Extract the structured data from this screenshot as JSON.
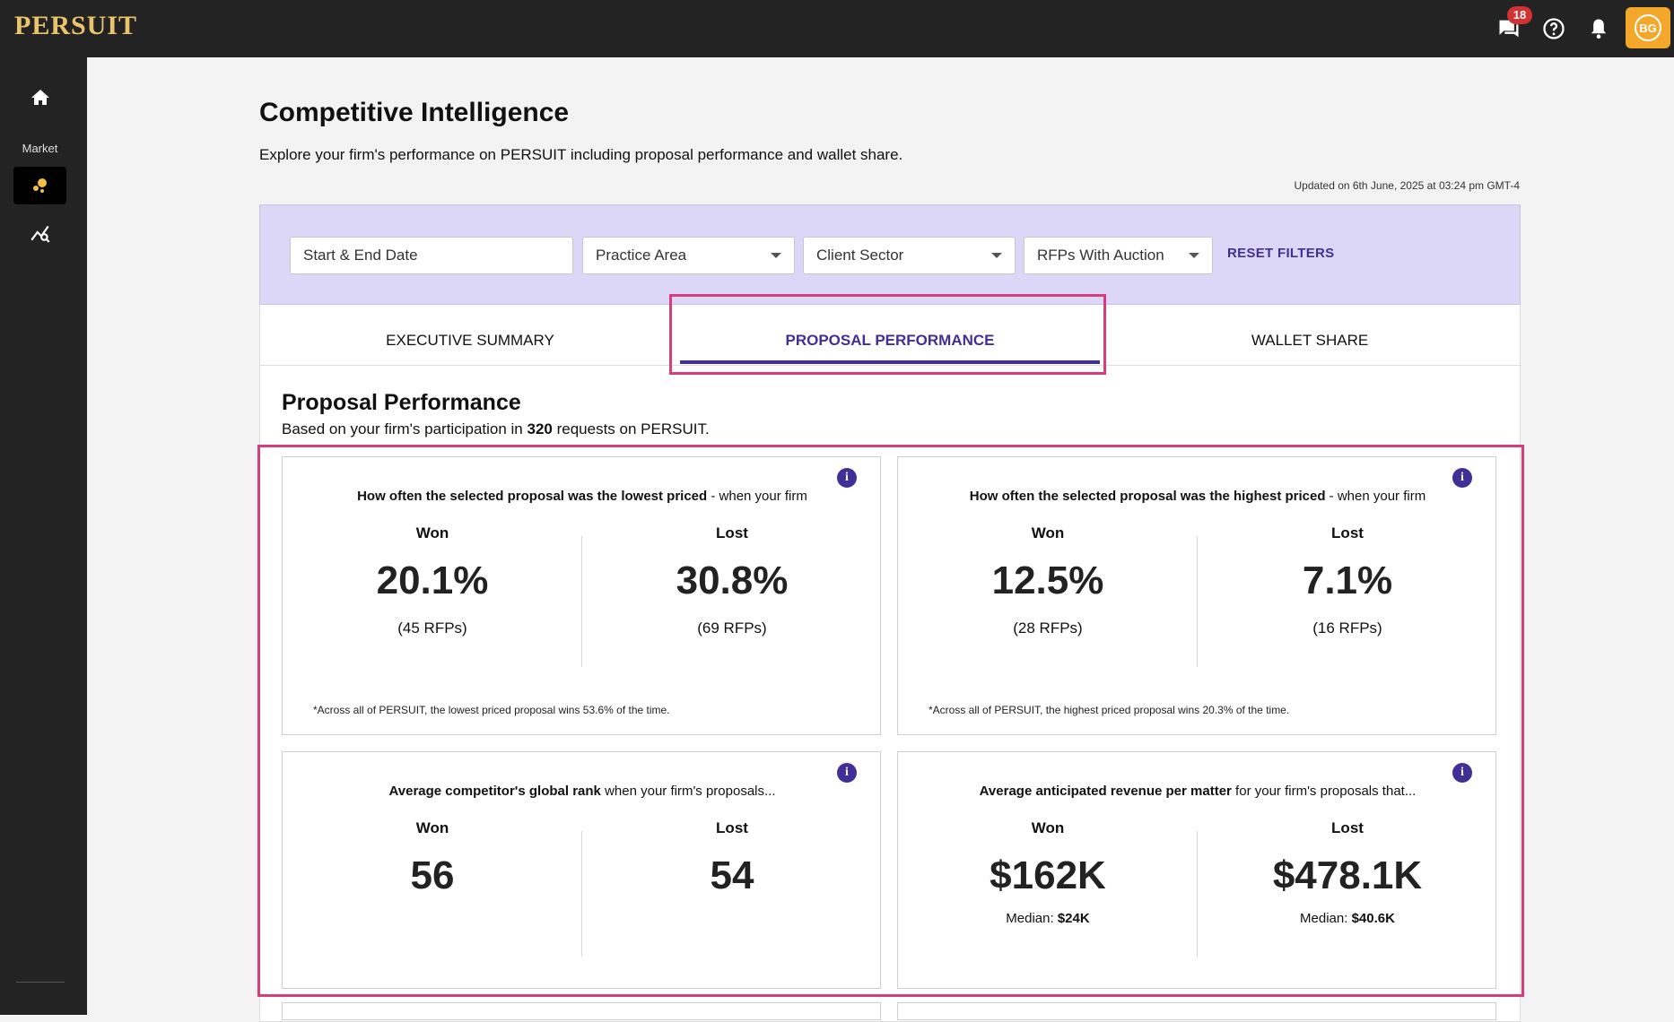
{
  "app": {
    "logo": "PERSUIT",
    "chat_badge": "18",
    "avatar_initials": "BG",
    "colors": {
      "accent": "#3f2f97",
      "avatar": "#f3a82c",
      "badge": "#d43232",
      "highlight": "#d63d7a",
      "filter_bg": "#dcd7f7",
      "logo": "#e9c46a"
    }
  },
  "sidebar": {
    "items": [
      {
        "icon": "home-icon"
      },
      {
        "label": "Market",
        "icon": "market-icon"
      },
      {
        "icon": "analytics-icon"
      }
    ]
  },
  "page": {
    "title": "Competitive Intelligence",
    "subtitle": "Explore your firm's performance on PERSUIT including proposal performance and wallet share.",
    "updated": "Updated on 6th June, 2025 at 03:24 pm GMT-4"
  },
  "filters": {
    "date_placeholder": "Start & End Date",
    "practice_area": "Practice Area",
    "client_sector": "Client Sector",
    "rfps_auction": "RFPs With Auction",
    "reset": "RESET FILTERS"
  },
  "tabs": [
    {
      "label": "EXECUTIVE SUMMARY",
      "active": false
    },
    {
      "label": "PROPOSAL PERFORMANCE",
      "active": true
    },
    {
      "label": "WALLET SHARE",
      "active": false
    }
  ],
  "section": {
    "title": "Proposal Performance",
    "sub_prefix": "Based on your firm's participation in ",
    "count": "320",
    "sub_suffix": " requests on PERSUIT."
  },
  "cards": [
    {
      "q_bold": "How often the selected proposal was the lowest priced",
      "q_rest": " - when your firm",
      "won_label": "Won",
      "won_value": "20.1%",
      "won_sub": "(45 RFPs)",
      "lost_label": "Lost",
      "lost_value": "30.8%",
      "lost_sub": "(69 RFPs)",
      "foot": "*Across all of PERSUIT, the lowest priced proposal wins 53.6% of the time."
    },
    {
      "q_bold": "How often the selected proposal was the highest priced",
      "q_rest": " - when your firm",
      "won_label": "Won",
      "won_value": "12.5%",
      "won_sub": "(28 RFPs)",
      "lost_label": "Lost",
      "lost_value": "7.1%",
      "lost_sub": "(16 RFPs)",
      "foot": "*Across all of PERSUIT, the highest priced proposal wins 20.3% of the time."
    },
    {
      "q_bold": "Average competitor's global rank",
      "q_rest": " when your firm's proposals...",
      "won_label": "Won",
      "won_value": "56",
      "lost_label": "Lost",
      "lost_value": "54"
    },
    {
      "q_bold": "Average anticipated revenue per matter",
      "q_rest": " for your firm's proposals that...",
      "won_label": "Won",
      "won_value": "$162K",
      "won_median_label": "Median: ",
      "won_median": "$24K",
      "lost_label": "Lost",
      "lost_value": "$478.1K",
      "lost_median_label": "Median: ",
      "lost_median": "$40.6K"
    }
  ]
}
